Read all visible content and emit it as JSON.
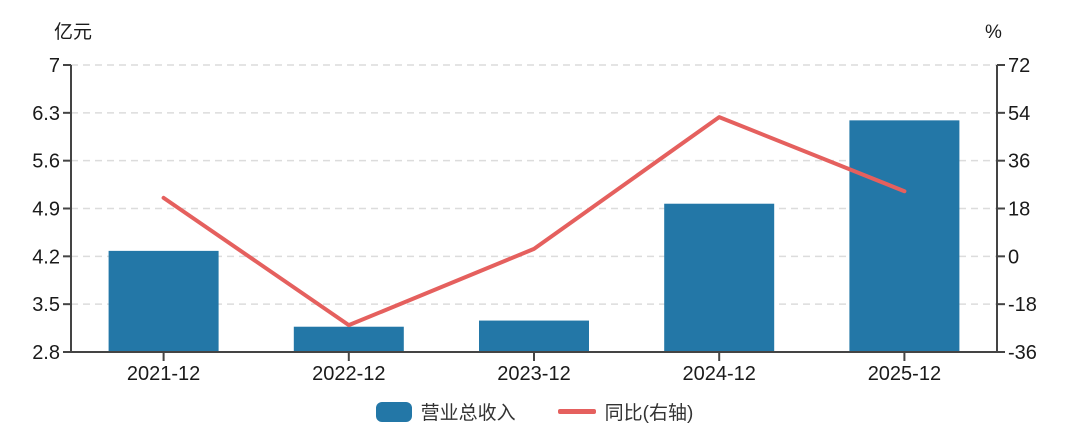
{
  "chart_data": {
    "type": "bar+line",
    "title": "",
    "categories": [
      "2021-12",
      "2022-12",
      "2023-12",
      "2024-12",
      "2025-12"
    ],
    "series": [
      {
        "name": "营业总收入",
        "type": "bar",
        "axis": "left",
        "unit": "亿元",
        "color": "#2377a7",
        "values": [
          4.28,
          3.17,
          3.26,
          4.97,
          6.19
        ]
      },
      {
        "name": "同比(右轴)",
        "type": "line",
        "axis": "right",
        "unit": "%",
        "color": "#e5605e",
        "values": [
          22.0,
          -25.9,
          2.8,
          52.4,
          24.5
        ]
      }
    ],
    "axes": {
      "left": {
        "label": "亿元",
        "min": 2.8,
        "max": 7,
        "ticks": [
          7,
          6.3,
          5.6,
          4.9,
          4.2,
          3.5,
          2.8
        ]
      },
      "right": {
        "label": "%",
        "min": -36,
        "max": 72,
        "ticks": [
          72,
          54,
          36,
          18,
          0,
          -18,
          -36
        ]
      },
      "x": {
        "labels": [
          "2021-12",
          "2022-12",
          "2023-12",
          "2024-12",
          "2025-12"
        ]
      }
    },
    "grid": "horizontal-dashed",
    "legend_position": "bottom"
  },
  "colors": {
    "bar": "#2377a7",
    "line": "#e5605e",
    "grid": "#dcdcdc",
    "axis": "#444444",
    "text": "#1a1a1a"
  }
}
